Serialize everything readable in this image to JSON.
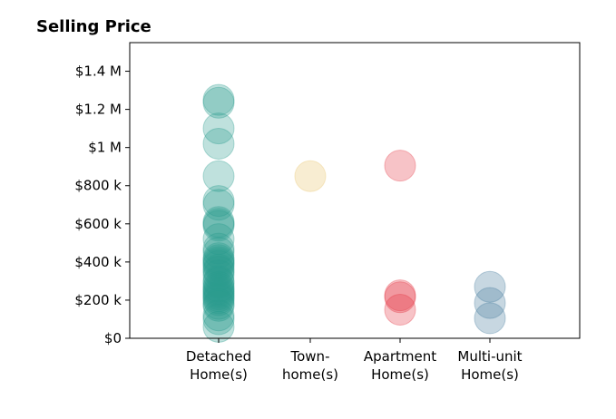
{
  "chart_data": {
    "type": "scatter",
    "title": "Selling Price",
    "xlabel": "",
    "ylabel": "",
    "ylim": [
      0,
      1550000
    ],
    "y_ticks": [
      {
        "value": 0,
        "label": "$0"
      },
      {
        "value": 200000,
        "label": "$200 k"
      },
      {
        "value": 400000,
        "label": "$400 k"
      },
      {
        "value": 600000,
        "label": "$600 k"
      },
      {
        "value": 800000,
        "label": "$800 k"
      },
      {
        "value": 1000000,
        "label": "$1 M"
      },
      {
        "value": 1200000,
        "label": "$1.2 M"
      },
      {
        "value": 1400000,
        "label": "$1.4 M"
      }
    ],
    "categories": [
      {
        "key": "detached",
        "lines": [
          "Detached",
          "Home(s)"
        ]
      },
      {
        "key": "townhome",
        "lines": [
          "Town-",
          "home(s)"
        ]
      },
      {
        "key": "apartment",
        "lines": [
          "Apartment",
          "Home(s)"
        ]
      },
      {
        "key": "multiunit",
        "lines": [
          "Multi-unit",
          "Home(s)"
        ]
      }
    ],
    "grid": false,
    "series": [
      {
        "category": "detached",
        "color": "#2a9d8f",
        "values": [
          1250000,
          1235000,
          1100000,
          1020000,
          850000,
          720000,
          700000,
          610000,
          600000,
          590000,
          520000,
          470000,
          450000,
          420000,
          410000,
          400000,
          390000,
          380000,
          360000,
          350000,
          330000,
          300000,
          290000,
          270000,
          260000,
          250000,
          240000,
          230000,
          220000,
          210000,
          200000,
          180000,
          170000,
          120000,
          100000,
          60000
        ]
      },
      {
        "category": "townhome",
        "color": "#e9c46a",
        "values": [
          850000
        ]
      },
      {
        "category": "apartment",
        "color": "#e63946",
        "values": [
          905000,
          225000,
          215000,
          150000
        ]
      },
      {
        "category": "multiunit",
        "color": "#457b9d",
        "values": [
          270000,
          185000,
          105000
        ]
      }
    ]
  }
}
